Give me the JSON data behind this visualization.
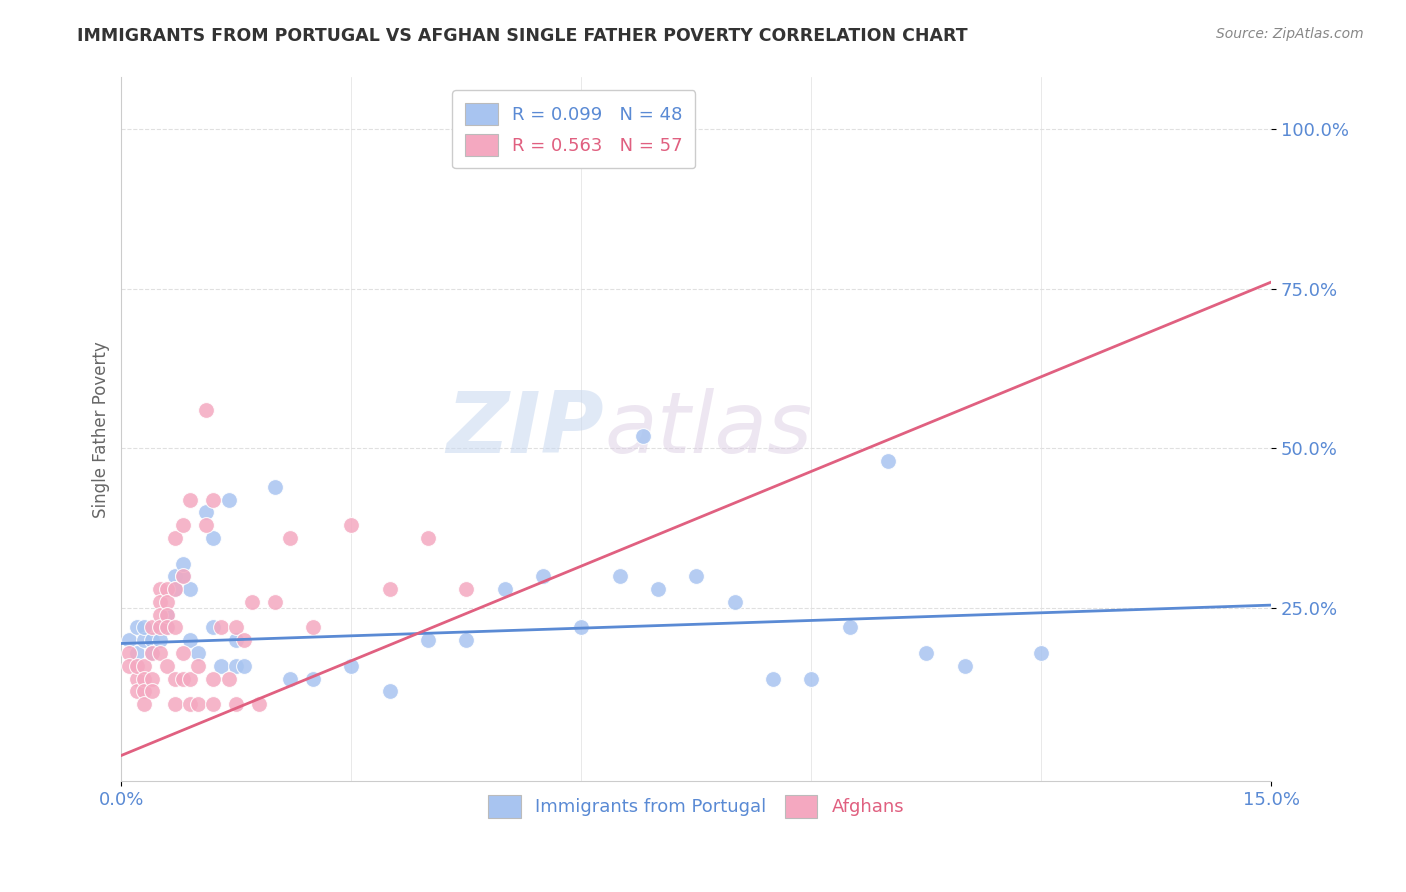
{
  "title": "IMMIGRANTS FROM PORTUGAL VS AFGHAN SINGLE FATHER POVERTY CORRELATION CHART",
  "source": "Source: ZipAtlas.com",
  "ylabel": "Single Father Poverty",
  "ytick_labels": [
    "100.0%",
    "75.0%",
    "50.0%",
    "25.0%"
  ],
  "ytick_positions": [
    1.0,
    0.75,
    0.5,
    0.25
  ],
  "xlim": [
    0.0,
    0.15
  ],
  "ylim": [
    -0.02,
    1.08
  ],
  "legend_entries": [
    {
      "label": "R = 0.099   N = 48",
      "color": "#a8c4f0"
    },
    {
      "label": "R = 0.563   N = 57",
      "color": "#f4a8c0"
    }
  ],
  "legend_label_blue": "Immigrants from Portugal",
  "legend_label_pink": "Afghans",
  "blue_scatter": [
    [
      0.001,
      0.2
    ],
    [
      0.002,
      0.22
    ],
    [
      0.002,
      0.18
    ],
    [
      0.003,
      0.2
    ],
    [
      0.003,
      0.22
    ],
    [
      0.004,
      0.2
    ],
    [
      0.004,
      0.18
    ],
    [
      0.005,
      0.22
    ],
    [
      0.005,
      0.2
    ],
    [
      0.006,
      0.22
    ],
    [
      0.006,
      0.24
    ],
    [
      0.007,
      0.3
    ],
    [
      0.007,
      0.28
    ],
    [
      0.008,
      0.3
    ],
    [
      0.008,
      0.32
    ],
    [
      0.009,
      0.28
    ],
    [
      0.009,
      0.2
    ],
    [
      0.01,
      0.18
    ],
    [
      0.011,
      0.4
    ],
    [
      0.012,
      0.36
    ],
    [
      0.012,
      0.22
    ],
    [
      0.013,
      0.16
    ],
    [
      0.014,
      0.42
    ],
    [
      0.015,
      0.2
    ],
    [
      0.015,
      0.16
    ],
    [
      0.016,
      0.16
    ],
    [
      0.02,
      0.44
    ],
    [
      0.022,
      0.14
    ],
    [
      0.025,
      0.14
    ],
    [
      0.03,
      0.16
    ],
    [
      0.035,
      0.12
    ],
    [
      0.04,
      0.2
    ],
    [
      0.045,
      0.2
    ],
    [
      0.05,
      0.28
    ],
    [
      0.055,
      0.3
    ],
    [
      0.06,
      0.22
    ],
    [
      0.065,
      0.3
    ],
    [
      0.068,
      0.52
    ],
    [
      0.07,
      0.28
    ],
    [
      0.075,
      0.3
    ],
    [
      0.08,
      0.26
    ],
    [
      0.085,
      0.14
    ],
    [
      0.09,
      0.14
    ],
    [
      0.095,
      0.22
    ],
    [
      0.1,
      0.48
    ],
    [
      0.105,
      0.18
    ],
    [
      0.11,
      0.16
    ],
    [
      0.12,
      0.18
    ]
  ],
  "pink_scatter": [
    [
      0.001,
      0.18
    ],
    [
      0.001,
      0.16
    ],
    [
      0.002,
      0.14
    ],
    [
      0.002,
      0.16
    ],
    [
      0.002,
      0.12
    ],
    [
      0.003,
      0.16
    ],
    [
      0.003,
      0.14
    ],
    [
      0.003,
      0.12
    ],
    [
      0.003,
      0.1
    ],
    [
      0.004,
      0.22
    ],
    [
      0.004,
      0.18
    ],
    [
      0.004,
      0.14
    ],
    [
      0.004,
      0.12
    ],
    [
      0.005,
      0.28
    ],
    [
      0.005,
      0.26
    ],
    [
      0.005,
      0.24
    ],
    [
      0.005,
      0.22
    ],
    [
      0.005,
      0.18
    ],
    [
      0.006,
      0.28
    ],
    [
      0.006,
      0.26
    ],
    [
      0.006,
      0.24
    ],
    [
      0.006,
      0.22
    ],
    [
      0.006,
      0.16
    ],
    [
      0.007,
      0.36
    ],
    [
      0.007,
      0.28
    ],
    [
      0.007,
      0.22
    ],
    [
      0.007,
      0.14
    ],
    [
      0.007,
      0.1
    ],
    [
      0.008,
      0.38
    ],
    [
      0.008,
      0.3
    ],
    [
      0.008,
      0.18
    ],
    [
      0.008,
      0.14
    ],
    [
      0.009,
      0.42
    ],
    [
      0.009,
      0.14
    ],
    [
      0.009,
      0.1
    ],
    [
      0.01,
      0.16
    ],
    [
      0.01,
      0.1
    ],
    [
      0.011,
      0.56
    ],
    [
      0.011,
      0.38
    ],
    [
      0.012,
      0.42
    ],
    [
      0.012,
      0.14
    ],
    [
      0.012,
      0.1
    ],
    [
      0.013,
      0.22
    ],
    [
      0.014,
      0.14
    ],
    [
      0.015,
      0.22
    ],
    [
      0.015,
      0.1
    ],
    [
      0.016,
      0.2
    ],
    [
      0.017,
      0.26
    ],
    [
      0.018,
      0.1
    ],
    [
      0.02,
      0.26
    ],
    [
      0.022,
      0.36
    ],
    [
      0.025,
      0.22
    ],
    [
      0.03,
      0.38
    ],
    [
      0.035,
      0.28
    ],
    [
      0.04,
      0.36
    ],
    [
      0.045,
      0.28
    ],
    [
      0.072,
      1.0
    ]
  ],
  "blue_line": [
    [
      0.0,
      0.195
    ],
    [
      0.15,
      0.255
    ]
  ],
  "pink_line": [
    [
      0.0,
      0.02
    ],
    [
      0.15,
      0.76
    ]
  ],
  "blue_color": "#a8c4f0",
  "pink_color": "#f4a8c0",
  "blue_line_color": "#5a8ad4",
  "pink_line_color": "#e06080",
  "bg_color": "#ffffff",
  "grid_color": "#e0e0e0",
  "title_color": "#333333",
  "axis_label_color": "#5a8ad4",
  "watermark_zip": "ZIP",
  "watermark_atlas": "atlas"
}
